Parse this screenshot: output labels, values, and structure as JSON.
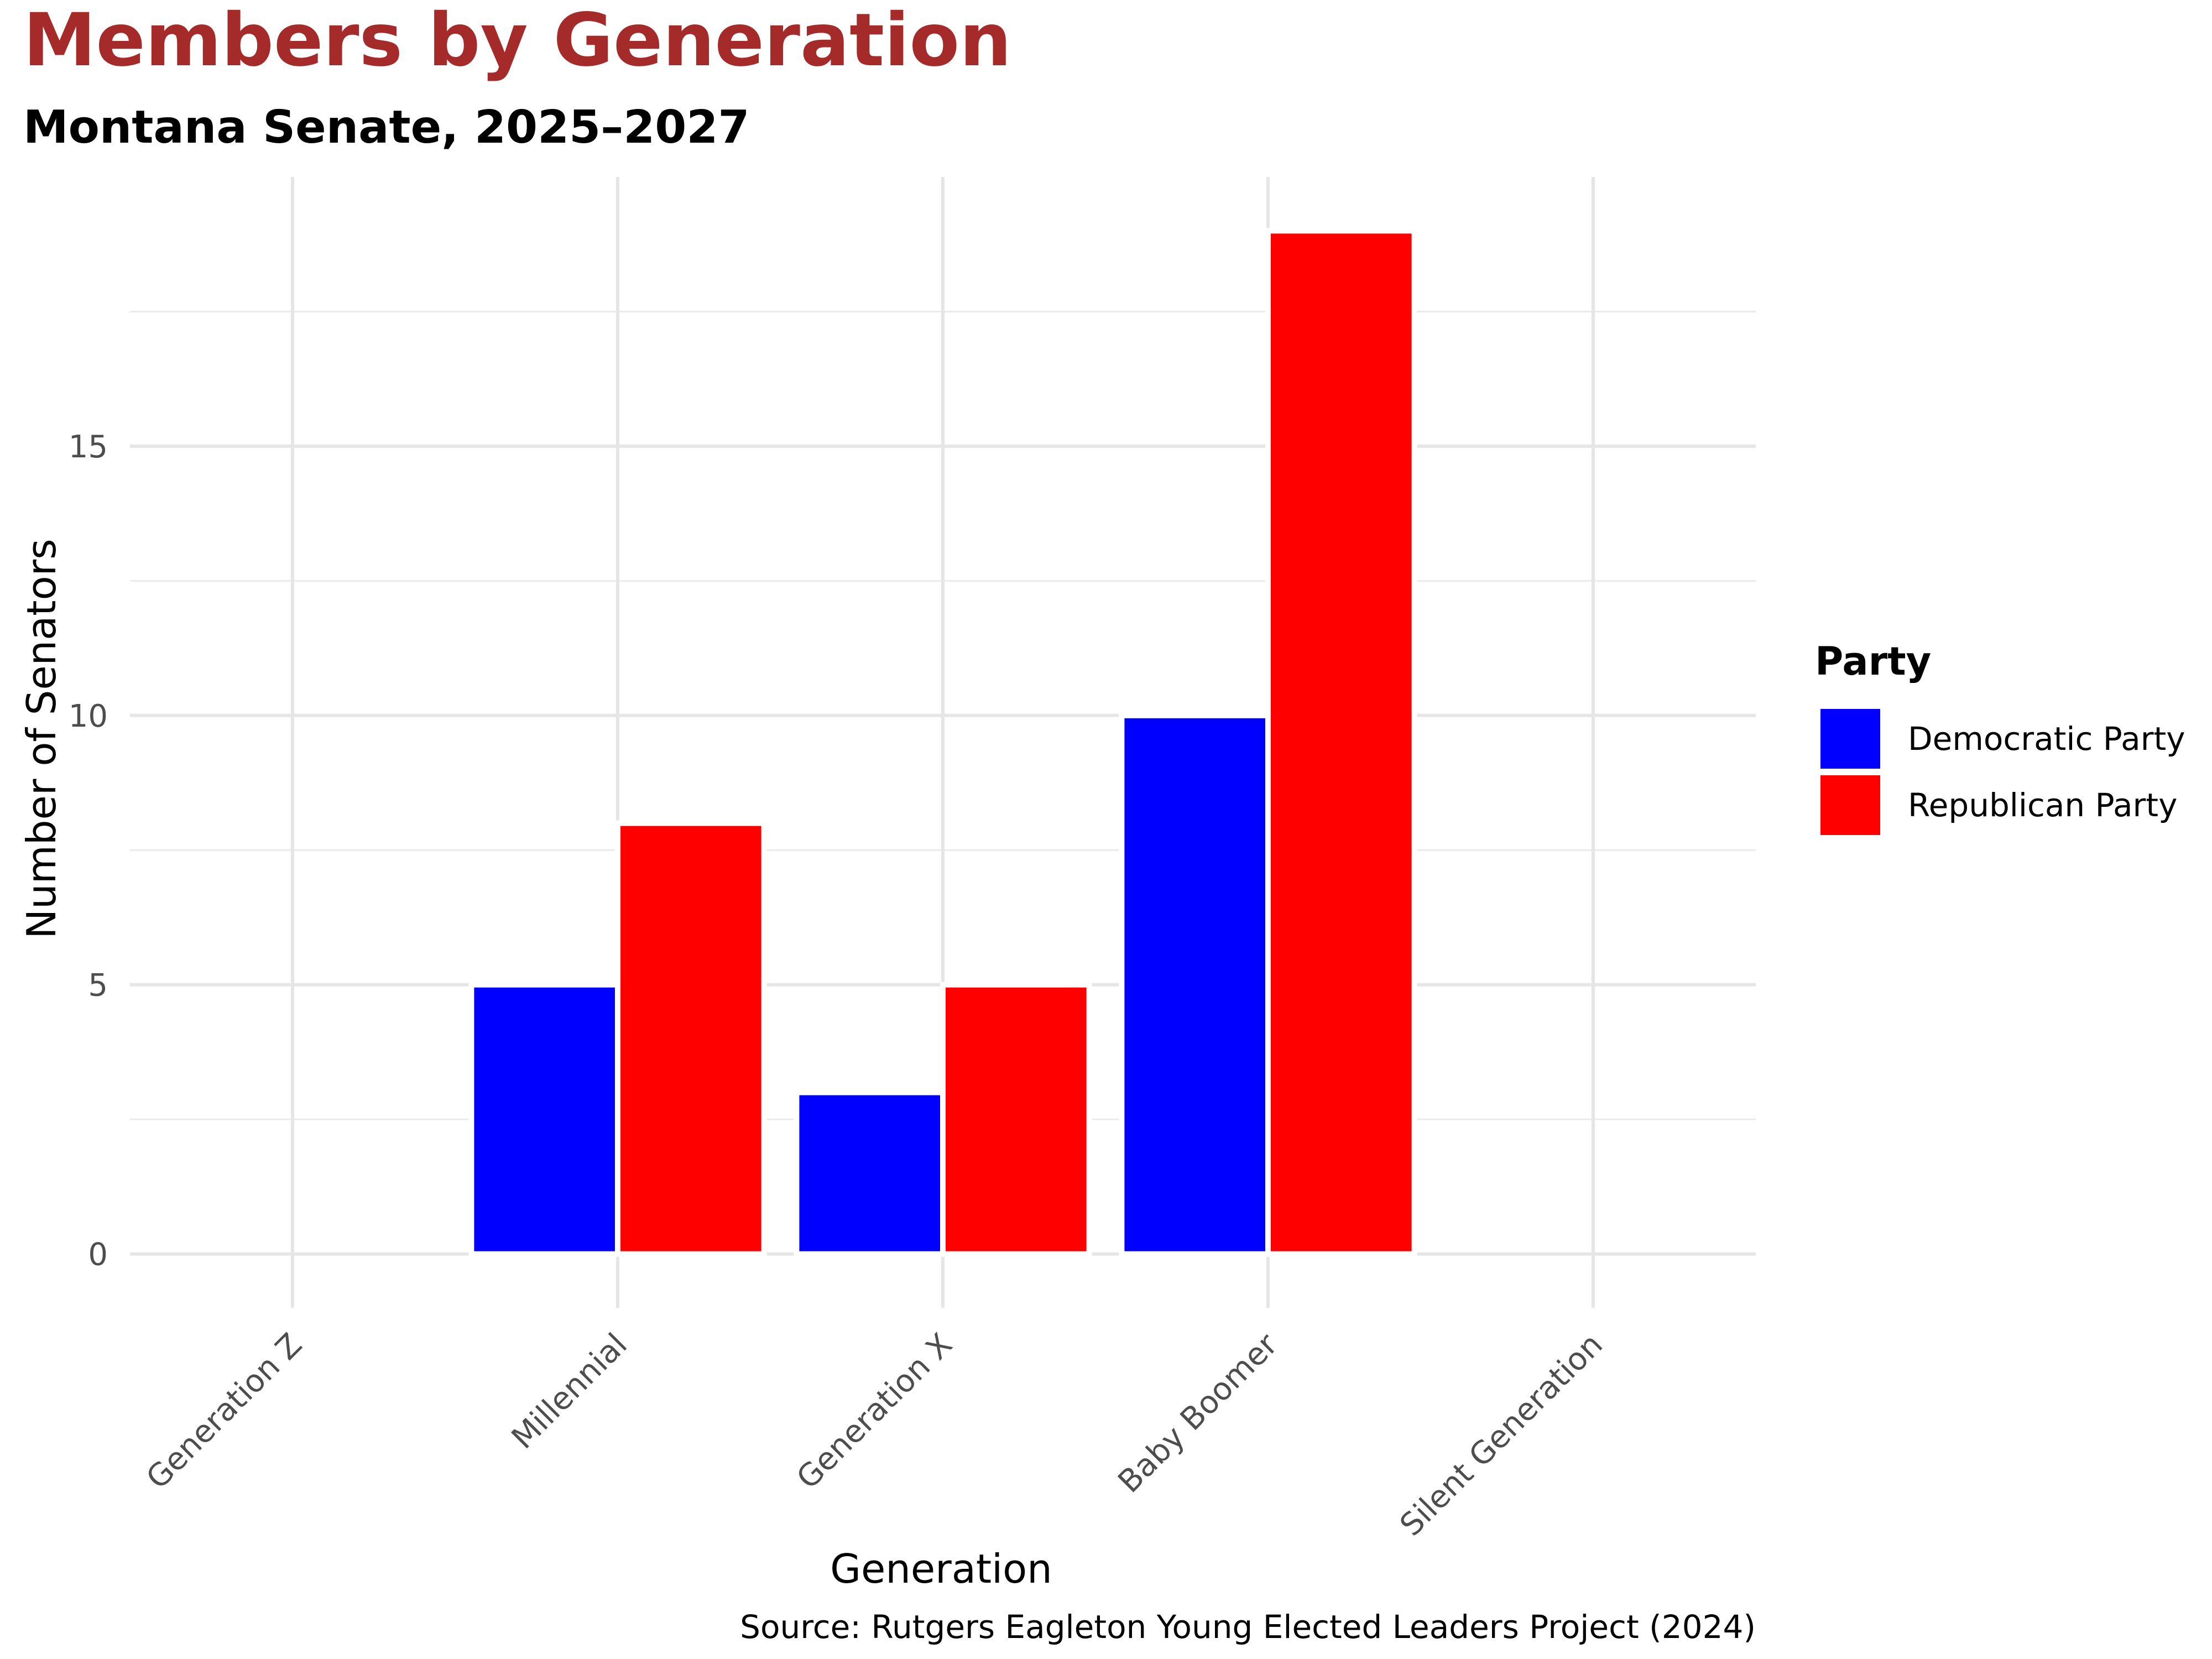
{
  "chart_data": {
    "type": "bar",
    "title": "Members by Generation",
    "subtitle": "Montana Senate, 2025–2027",
    "xlabel": "Generation",
    "ylabel": "Number of Senators",
    "caption": "Source: Rutgers Eagleton Young Elected Leaders Project (2024)",
    "categories": [
      "Generation Z",
      "Millennial",
      "Generation X",
      "Baby Boomer",
      "Silent Generation"
    ],
    "series": [
      {
        "name": "Democratic Party",
        "color": "#0000ff",
        "values": [
          0,
          5,
          3,
          10,
          0
        ]
      },
      {
        "name": "Republican Party",
        "color": "#ff0000",
        "values": [
          0,
          8,
          5,
          19,
          0
        ]
      }
    ],
    "ylim": [
      -1,
      20
    ],
    "yticks": [
      0,
      5,
      10,
      15
    ],
    "ytick_labels": [
      "0",
      "5",
      "10",
      "15"
    ],
    "grid": true,
    "legend": {
      "title": "Party",
      "position": "right"
    },
    "title_color": "#a52a2a"
  }
}
